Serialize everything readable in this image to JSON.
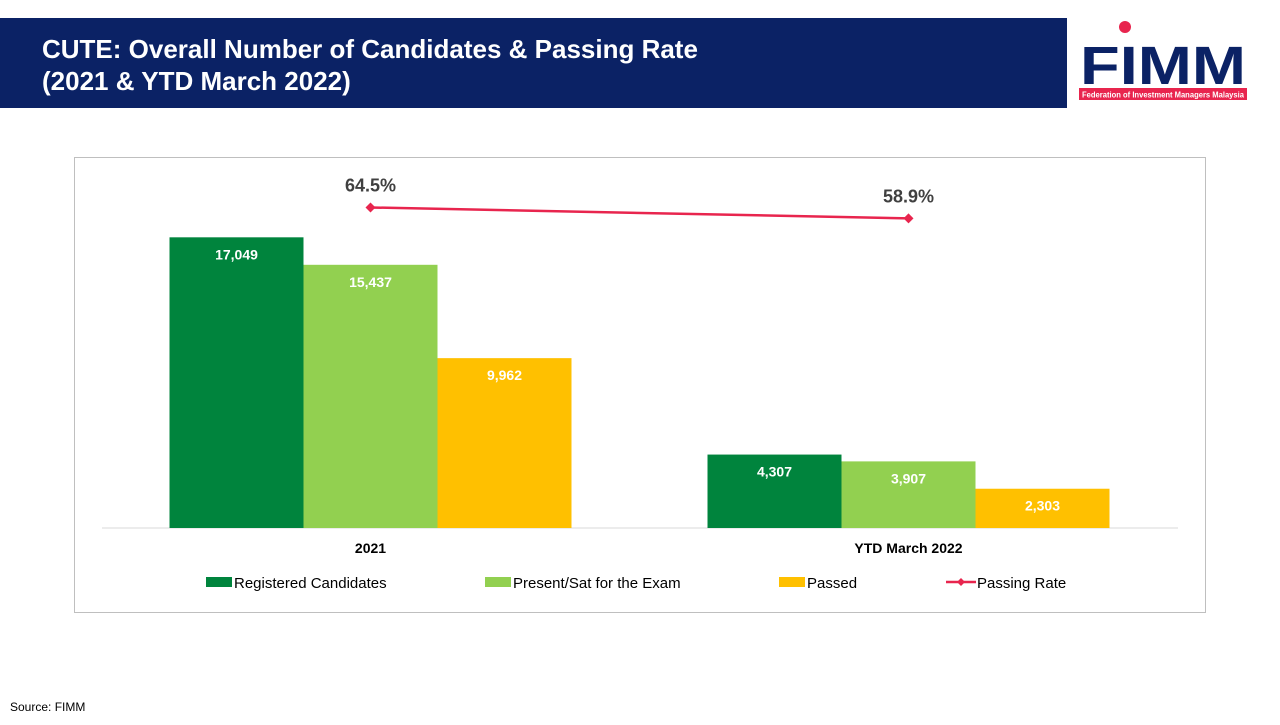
{
  "header": {
    "title": [
      "CUTE: Overall Number of Candidates & Passing Rate",
      "(2021 & YTD March 2022)"
    ]
  },
  "logo": {
    "name": "FIMM",
    "tagline": "Federation of Investment Managers Malaysia"
  },
  "chart_data": {
    "type": "bar",
    "categories": [
      "2021",
      "YTD March 2022"
    ],
    "ylim": [
      0,
      20000
    ],
    "y2lim": [
      -100,
      75
    ],
    "legend": "bottom",
    "series": [
      {
        "name": "Registered Candidates",
        "color": "#00843d",
        "values": [
          17049,
          4307
        ],
        "value_labels": [
          "17,049",
          "4,307"
        ]
      },
      {
        "name": "Present/Sat for the Exam",
        "color": "#92d050",
        "values": [
          15437,
          3907
        ],
        "value_labels": [
          "15,437",
          "3,907"
        ]
      },
      {
        "name": "Passed",
        "color": "#ffc000",
        "values": [
          9962,
          2303
        ],
        "value_labels": [
          "9,962",
          "2,303"
        ]
      },
      {
        "name": "Passing Rate",
        "type": "line",
        "axis": "y2",
        "color": "#e8254e",
        "values": [
          64.5,
          58.9
        ],
        "value_labels": [
          "64.5%",
          "58.9%"
        ]
      }
    ]
  },
  "source": "Source: FIMM"
}
